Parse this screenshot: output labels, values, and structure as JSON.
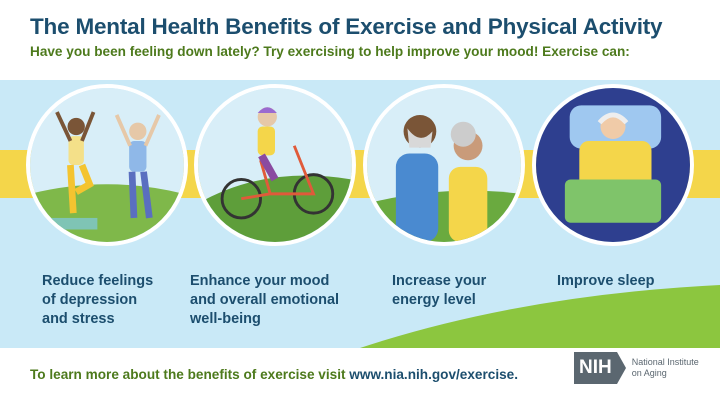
{
  "header": {
    "title": "The Mental Health Benefits of Exercise and Physical Activity",
    "subtitle": "Have you been feeling down lately? Try exercising to help improve your mood! Exercise can:"
  },
  "benefits": [
    {
      "line1": "Reduce feelings",
      "line2": "of depression",
      "line3": "and stress",
      "icon": "yoga-illustration"
    },
    {
      "line1": "Enhance your mood",
      "line2": "and overall emotional",
      "line3": "well-being",
      "icon": "cycling-illustration"
    },
    {
      "line1": "Increase your",
      "line2": "energy level",
      "line3": "",
      "icon": "walking-couple-illustration"
    },
    {
      "line1": "Improve sleep",
      "line2": "",
      "line3": "",
      "icon": "sleeping-illustration"
    }
  ],
  "footer": {
    "text": "To learn more about the benefits of exercise visit ",
    "url": "www.nia.nih.gov/exercise."
  },
  "logo": {
    "mark": "NIH",
    "line1": "National Institute",
    "line2": "on Aging"
  },
  "colors": {
    "title": "#1c4e6e",
    "green": "#4d7a1c",
    "sky": "#c9e9f7",
    "stripe": "#f4d64a"
  }
}
